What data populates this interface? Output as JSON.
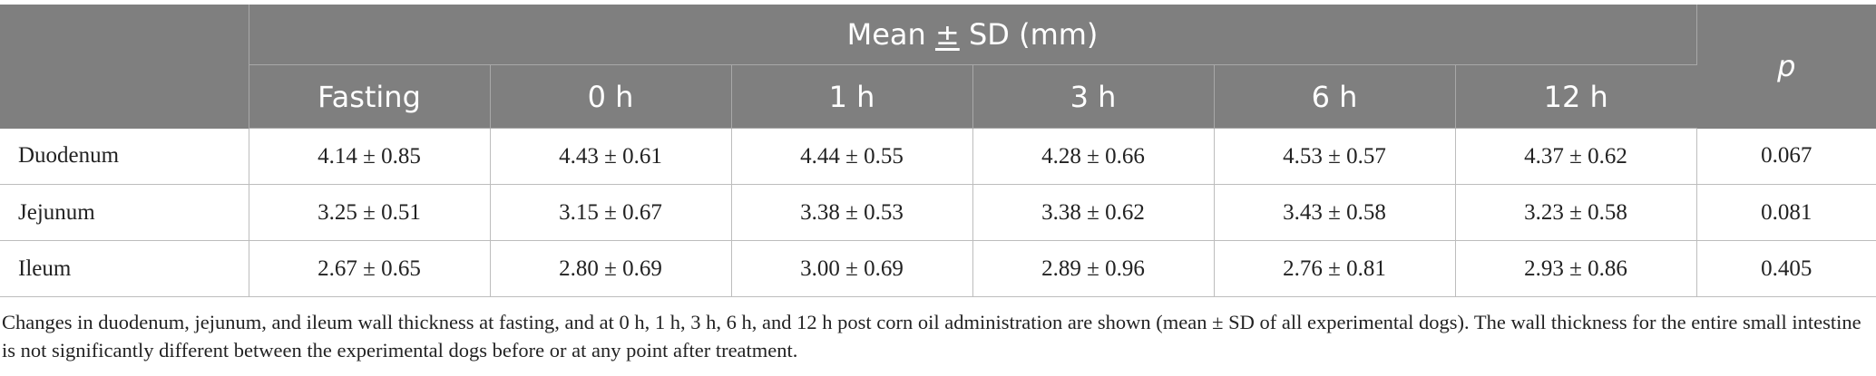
{
  "table": {
    "group_header": {
      "prefix": "Mean ",
      "pm": "±",
      "suffix": " SD (mm)"
    },
    "p_header": "p",
    "columns": [
      "Fasting",
      "0 h",
      "1 h",
      "3 h",
      "6 h",
      "12 h"
    ],
    "rows": [
      {
        "label": "Duodenum",
        "values": [
          "4.14 ± 0.85",
          "4.43 ± 0.61",
          "4.44 ± 0.55",
          "4.28 ± 0.66",
          "4.53 ± 0.57",
          "4.37 ± 0.62"
        ],
        "p": "0.067"
      },
      {
        "label": "Jejunum",
        "values": [
          "3.25 ± 0.51",
          "3.15 ± 0.67",
          "3.38 ± 0.53",
          "3.38 ± 0.62",
          "3.43 ± 0.58",
          "3.23 ± 0.58"
        ],
        "p": "0.081"
      },
      {
        "label": "Ileum",
        "values": [
          "2.67 ± 0.65",
          "2.80 ± 0.69",
          "3.00 ± 0.69",
          "2.89 ± 0.96",
          "2.76 ± 0.81",
          "2.93 ± 0.86"
        ],
        "p": "0.405"
      }
    ]
  },
  "caption": "Changes in duodenum, jejunum, and ileum wall thickness at fasting, and at 0 h, 1 h, 3 h, 6 h, and 12 h post corn oil administration are shown (mean ± SD of all experimental dogs). The wall thickness for the entire small intestine is not significantly different between the experimental dogs before or at any point after treatment.",
  "colors": {
    "header_bg": "#7f7f7f",
    "header_text": "#ffffff",
    "body_text": "#222222",
    "grid": "#bdbdbd"
  }
}
